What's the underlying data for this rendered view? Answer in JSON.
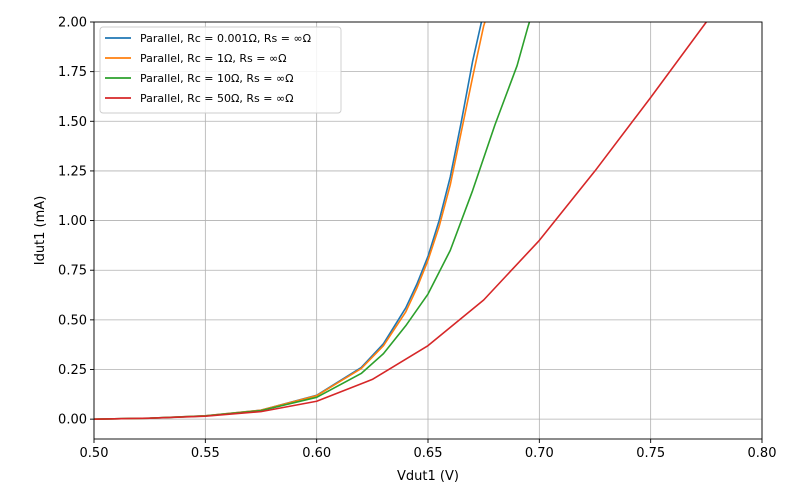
{
  "chart_data": {
    "type": "line",
    "title": "",
    "xlabel": "Vdut1 (V)",
    "ylabel": "Idut1 (mA)",
    "xlim": [
      0.5,
      0.8
    ],
    "ylim": [
      -0.1,
      2.0
    ],
    "grid": true,
    "legend_position": "top-left",
    "x_ticks": [
      0.5,
      0.55,
      0.6,
      0.65,
      0.7,
      0.75,
      0.8
    ],
    "x_tick_labels": [
      "0.50",
      "0.55",
      "0.60",
      "0.65",
      "0.70",
      "0.75",
      "0.80"
    ],
    "y_ticks": [
      0.0,
      0.25,
      0.5,
      0.75,
      1.0,
      1.25,
      1.5,
      1.75,
      2.0
    ],
    "y_tick_labels": [
      "0.00",
      "0.25",
      "0.50",
      "0.75",
      "1.00",
      "1.25",
      "1.50",
      "1.75",
      "2.00"
    ],
    "series": [
      {
        "name": "Parallel, Rc = 0.001Ω, Rs = ∞Ω",
        "color": "#1f77b4",
        "x": [
          0.5,
          0.525,
          0.55,
          0.575,
          0.6,
          0.62,
          0.63,
          0.64,
          0.645,
          0.65,
          0.655,
          0.66,
          0.665,
          0.67,
          0.675
        ],
        "y": [
          0.0,
          0.005,
          0.017,
          0.045,
          0.12,
          0.26,
          0.38,
          0.56,
          0.68,
          0.82,
          1.0,
          1.22,
          1.5,
          1.8,
          2.05
        ]
      },
      {
        "name": "Parallel, Rc = 1Ω, Rs = ∞Ω",
        "color": "#ff7f0e",
        "x": [
          0.5,
          0.525,
          0.55,
          0.575,
          0.6,
          0.62,
          0.63,
          0.64,
          0.645,
          0.65,
          0.655,
          0.66,
          0.665,
          0.67,
          0.675,
          0.677
        ],
        "y": [
          0.0,
          0.005,
          0.017,
          0.045,
          0.118,
          0.255,
          0.37,
          0.54,
          0.66,
          0.8,
          0.97,
          1.18,
          1.45,
          1.72,
          1.98,
          2.05
        ]
      },
      {
        "name": "Parallel, Rc = 10Ω, Rs = ∞Ω",
        "color": "#2ca02c",
        "x": [
          0.5,
          0.525,
          0.55,
          0.575,
          0.6,
          0.62,
          0.63,
          0.64,
          0.65,
          0.66,
          0.67,
          0.68,
          0.69,
          0.695,
          0.697
        ],
        "y": [
          0.0,
          0.005,
          0.016,
          0.043,
          0.11,
          0.23,
          0.33,
          0.47,
          0.63,
          0.85,
          1.15,
          1.48,
          1.78,
          1.98,
          2.05
        ]
      },
      {
        "name": "Parallel, Rc = 50Ω, Rs = ∞Ω",
        "color": "#d62728",
        "x": [
          0.5,
          0.525,
          0.55,
          0.575,
          0.6,
          0.625,
          0.65,
          0.675,
          0.7,
          0.725,
          0.75,
          0.775,
          0.777
        ],
        "y": [
          0.0,
          0.005,
          0.015,
          0.038,
          0.09,
          0.2,
          0.37,
          0.6,
          0.9,
          1.25,
          1.62,
          2.0,
          2.03
        ]
      }
    ]
  }
}
